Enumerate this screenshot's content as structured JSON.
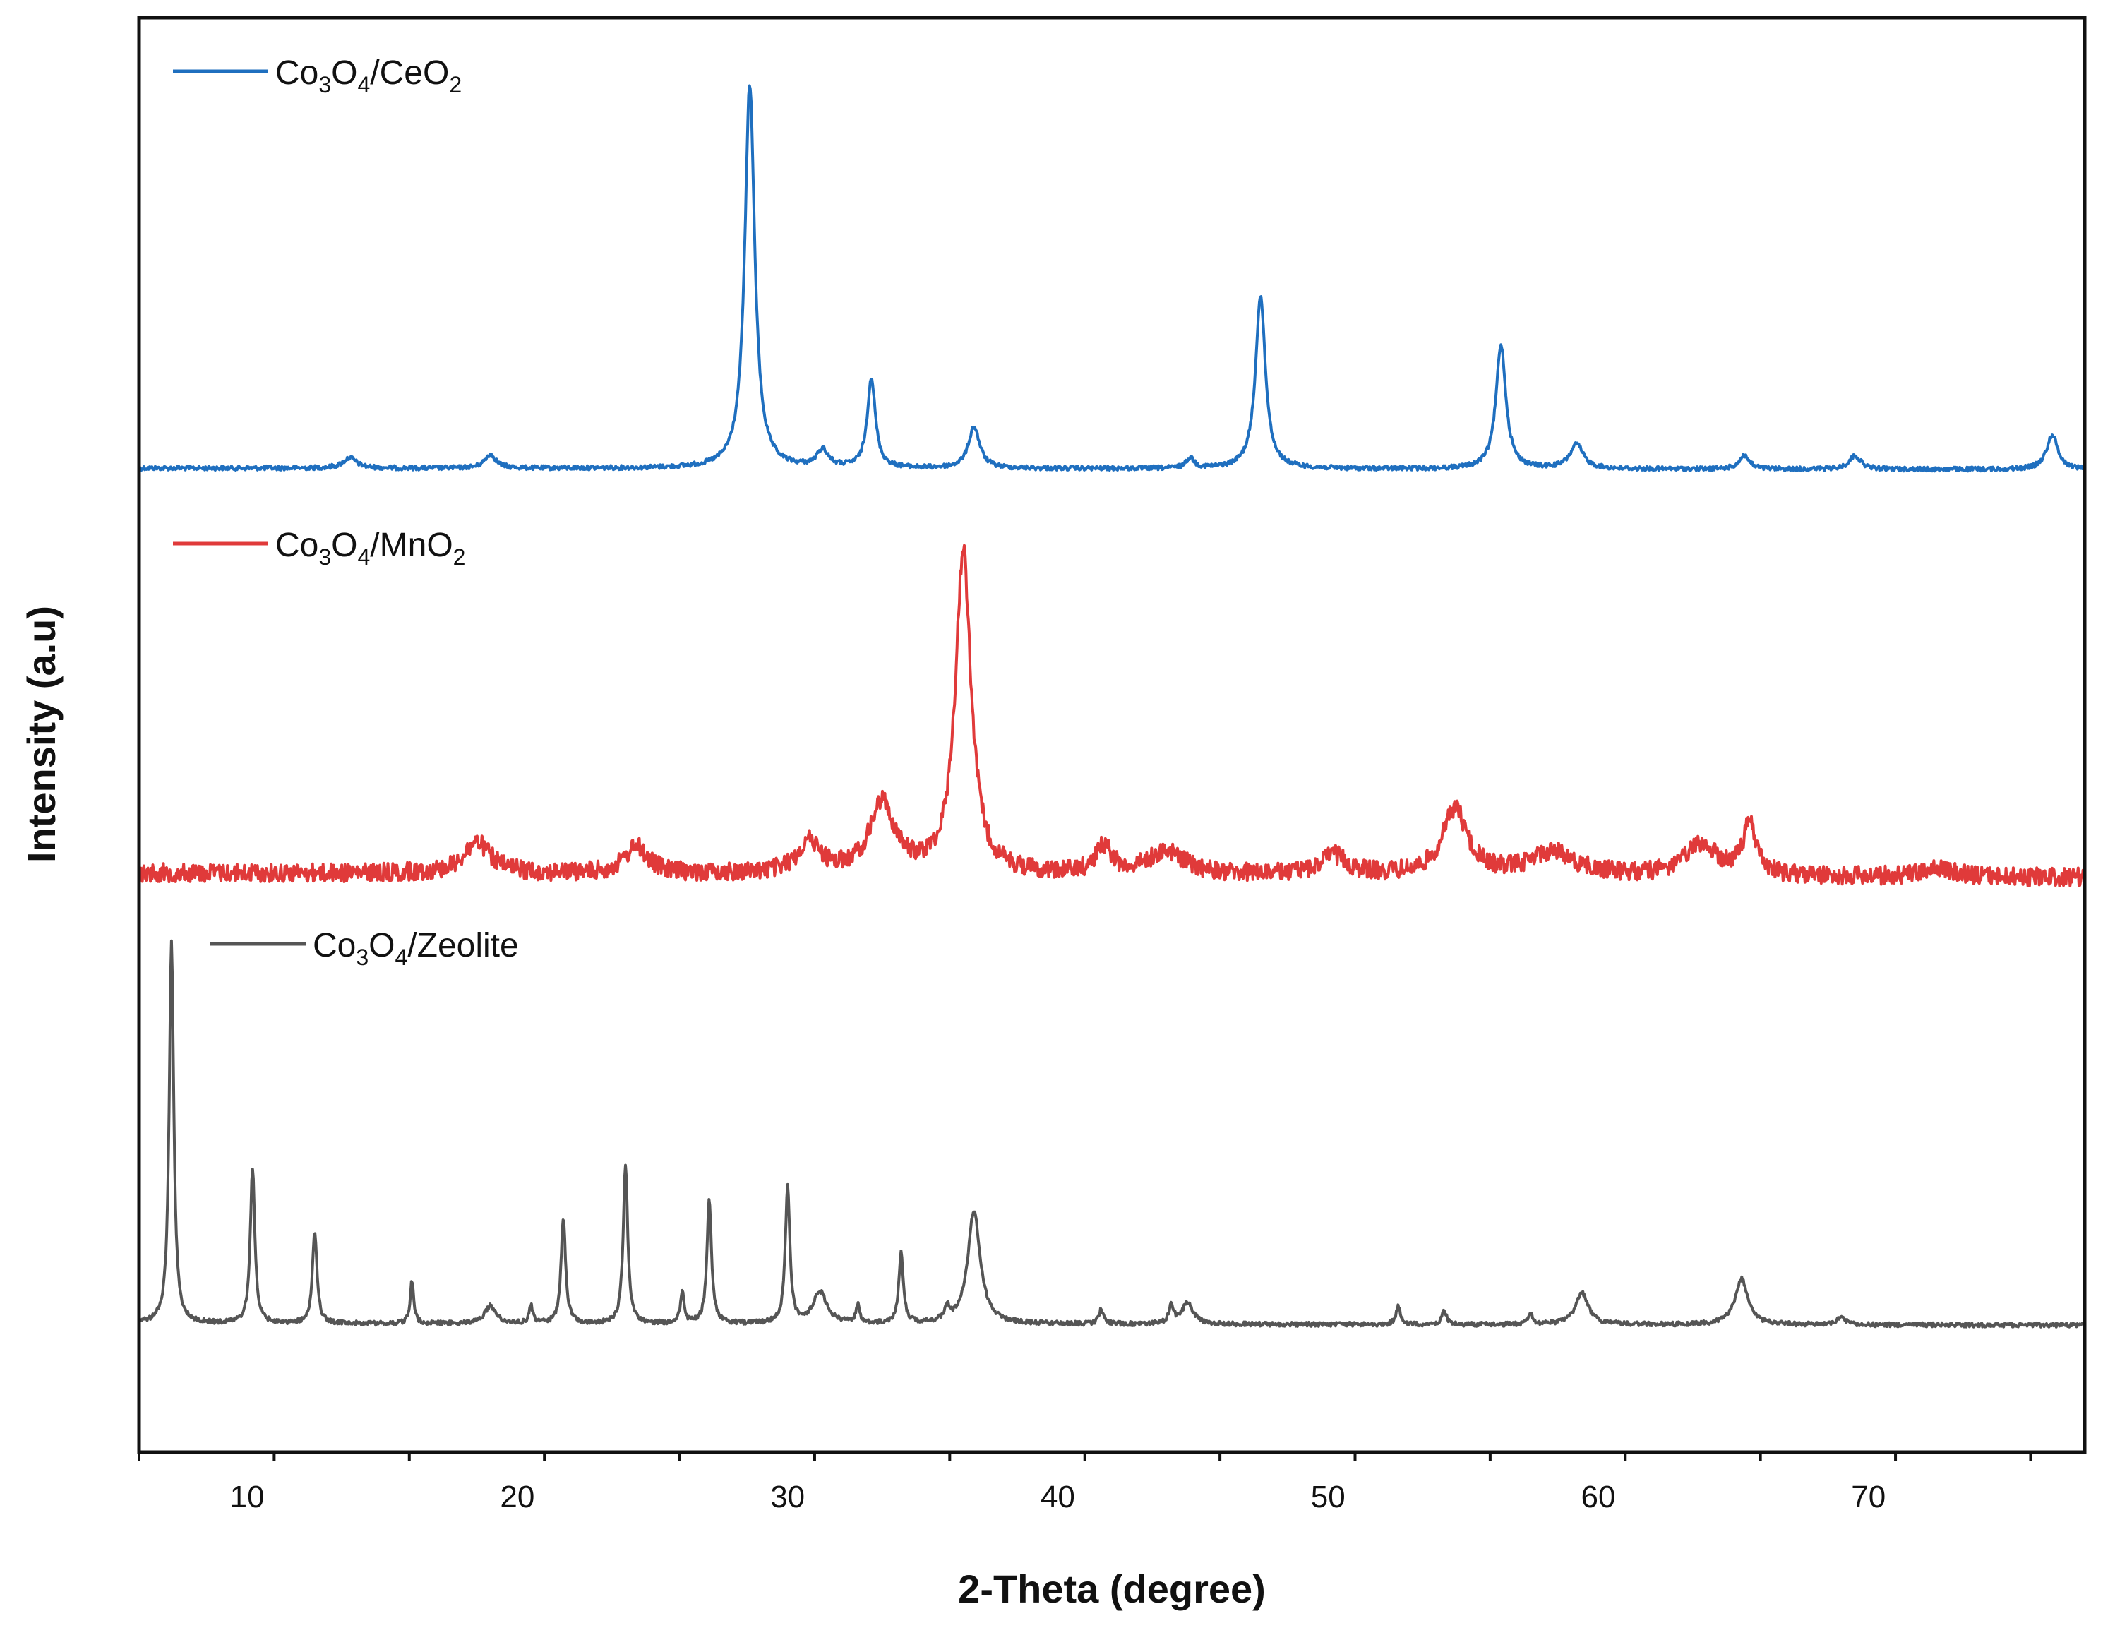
{
  "chart_data": {
    "type": "line",
    "xlabel": "2-Theta (degree)",
    "ylabel": "Intensity (a.u)",
    "xlim": [
      6,
      78
    ],
    "x_ticks": [
      10,
      20,
      30,
      40,
      50,
      60,
      70
    ],
    "y_ticks": [],
    "grid": false,
    "legend_placement": "inline-left",
    "series": [
      {
        "name": "Co3O4/CeO2",
        "color": "#1f6fbf",
        "baseline": 0.1,
        "peaks": [
          {
            "x": 13.8,
            "h": 0.3,
            "w": 0.3
          },
          {
            "x": 19.0,
            "h": 0.4,
            "w": 0.25
          },
          {
            "x": 28.6,
            "h": 11.1,
            "w": 0.22
          },
          {
            "x": 31.3,
            "h": 0.5,
            "w": 0.25
          },
          {
            "x": 33.1,
            "h": 2.6,
            "w": 0.18
          },
          {
            "x": 36.9,
            "h": 1.2,
            "w": 0.25
          },
          {
            "x": 44.9,
            "h": 0.3,
            "w": 0.18
          },
          {
            "x": 47.5,
            "h": 5.0,
            "w": 0.22
          },
          {
            "x": 56.4,
            "h": 3.6,
            "w": 0.22
          },
          {
            "x": 59.2,
            "h": 0.7,
            "w": 0.3
          },
          {
            "x": 65.4,
            "h": 0.4,
            "w": 0.22
          },
          {
            "x": 69.5,
            "h": 0.4,
            "w": 0.25
          },
          {
            "x": 76.8,
            "h": 1.0,
            "w": 0.25
          }
        ]
      },
      {
        "name": "Co3O4/MnO2",
        "color": "#e03a3a",
        "baseline": 0.3,
        "peaks": [
          {
            "x": 18.5,
            "h": 0.8,
            "w": 0.6
          },
          {
            "x": 24.4,
            "h": 0.7,
            "w": 0.5
          },
          {
            "x": 30.8,
            "h": 0.8,
            "w": 0.5
          },
          {
            "x": 33.5,
            "h": 1.8,
            "w": 0.55
          },
          {
            "x": 36.5,
            "h": 8.3,
            "w": 0.35
          },
          {
            "x": 41.7,
            "h": 0.7,
            "w": 0.35
          },
          {
            "x": 44.0,
            "h": 0.6,
            "w": 0.8
          },
          {
            "x": 50.2,
            "h": 0.5,
            "w": 0.6
          },
          {
            "x": 54.7,
            "h": 1.7,
            "w": 0.55
          },
          {
            "x": 58.3,
            "h": 0.6,
            "w": 1.0
          },
          {
            "x": 63.8,
            "h": 0.8,
            "w": 0.7
          },
          {
            "x": 65.6,
            "h": 1.3,
            "w": 0.3
          },
          {
            "x": 72.5,
            "h": 0.2,
            "w": 0.8
          }
        ]
      },
      {
        "name": "Co3O4/Zeolite",
        "color": "#555555",
        "baseline": 0.1,
        "peaks": [
          {
            "x": 7.2,
            "h": 10.8,
            "w": 0.1
          },
          {
            "x": 10.2,
            "h": 4.4,
            "w": 0.1
          },
          {
            "x": 12.5,
            "h": 2.6,
            "w": 0.1
          },
          {
            "x": 16.1,
            "h": 1.2,
            "w": 0.08
          },
          {
            "x": 19.0,
            "h": 0.5,
            "w": 0.25
          },
          {
            "x": 20.5,
            "h": 0.5,
            "w": 0.08
          },
          {
            "x": 21.7,
            "h": 3.0,
            "w": 0.1
          },
          {
            "x": 24.0,
            "h": 4.5,
            "w": 0.1
          },
          {
            "x": 26.1,
            "h": 0.9,
            "w": 0.08
          },
          {
            "x": 27.1,
            "h": 3.5,
            "w": 0.1
          },
          {
            "x": 30.0,
            "h": 3.9,
            "w": 0.1
          },
          {
            "x": 31.2,
            "h": 0.9,
            "w": 0.3
          },
          {
            "x": 32.6,
            "h": 0.5,
            "w": 0.08
          },
          {
            "x": 34.2,
            "h": 2.0,
            "w": 0.1
          },
          {
            "x": 35.9,
            "h": 0.4,
            "w": 0.1
          },
          {
            "x": 36.9,
            "h": 3.2,
            "w": 0.28
          },
          {
            "x": 41.6,
            "h": 0.4,
            "w": 0.1
          },
          {
            "x": 44.2,
            "h": 0.5,
            "w": 0.1
          },
          {
            "x": 44.8,
            "h": 0.6,
            "w": 0.25
          },
          {
            "x": 52.6,
            "h": 0.5,
            "w": 0.1
          },
          {
            "x": 54.3,
            "h": 0.4,
            "w": 0.1
          },
          {
            "x": 57.5,
            "h": 0.3,
            "w": 0.1
          },
          {
            "x": 59.4,
            "h": 0.9,
            "w": 0.28
          },
          {
            "x": 65.3,
            "h": 1.3,
            "w": 0.28
          },
          {
            "x": 69.0,
            "h": 0.2,
            "w": 0.2
          }
        ]
      }
    ]
  }
}
